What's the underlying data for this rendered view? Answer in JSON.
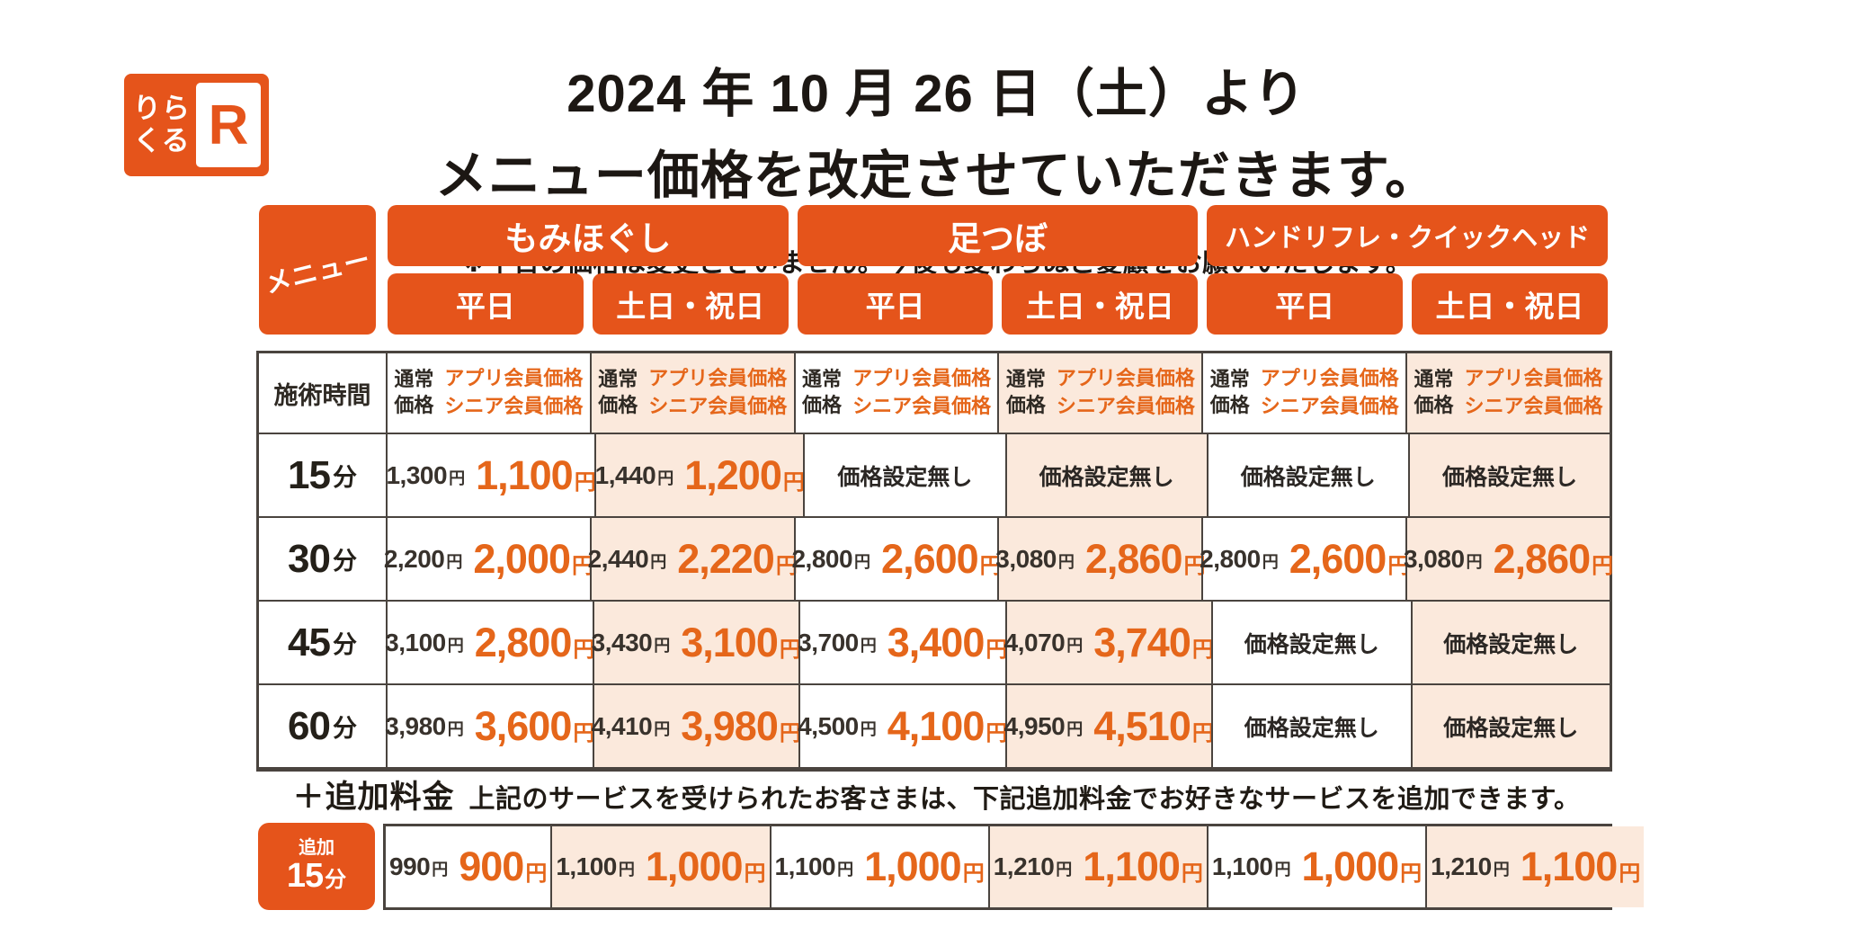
{
  "colors": {
    "brand_orange": "#e5541b",
    "price_orange": "#e5661a",
    "weekend_peach": "#fbe9dc",
    "table_line": "#4a443f"
  },
  "logo": {
    "text_line1": "りら",
    "text_line2": "くる",
    "r_letter": "R"
  },
  "header": {
    "title_line1": "2024 年 10 月 26 日（土）より",
    "title_line2": "メニュー価格を改定させていただきます。",
    "note": "※平日の価格は変更ございません。今後も変わらぬご愛顧をお願いいたします。"
  },
  "menu": {
    "corner_label": "メニュー",
    "services": [
      "もみほぐし",
      "足つぼ",
      "ハンドリフレ・クイックヘッド"
    ],
    "days": [
      "平日",
      "土日・祝日",
      "平日",
      "土日・祝日",
      "平日",
      "土日・祝日"
    ]
  },
  "table": {
    "time_header": "施術時間",
    "price_header": {
      "normal_line1": "通常",
      "normal_line2": "価格",
      "member_line1": "アプリ会員価格",
      "member_line2": "シニア会員価格"
    },
    "yen": "円",
    "minute_unit": "分",
    "no_price": "価格設定無し",
    "rows": [
      {
        "time": "15",
        "cells": [
          {
            "normal": "1,300",
            "member": "1,100"
          },
          {
            "normal": "1,440",
            "member": "1,200"
          },
          {
            "none": "価格設定無し"
          },
          {
            "none": "価格設定無し"
          },
          {
            "none": "価格設定無し"
          },
          {
            "none": "価格設定無し"
          }
        ]
      },
      {
        "time": "30",
        "cells": [
          {
            "normal": "2,200",
            "member": "2,000"
          },
          {
            "normal": "2,440",
            "member": "2,220"
          },
          {
            "normal": "2,800",
            "member": "2,600"
          },
          {
            "normal": "3,080",
            "member": "2,860"
          },
          {
            "normal": "2,800",
            "member": "2,600"
          },
          {
            "normal": "3,080",
            "member": "2,860"
          }
        ]
      },
      {
        "time": "45",
        "cells": [
          {
            "normal": "3,100",
            "member": "2,800"
          },
          {
            "normal": "3,430",
            "member": "3,100"
          },
          {
            "normal": "3,700",
            "member": "3,400"
          },
          {
            "normal": "4,070",
            "member": "3,740"
          },
          {
            "none": "価格設定無し"
          },
          {
            "none": "価格設定無し"
          }
        ]
      },
      {
        "time": "60",
        "cells": [
          {
            "normal": "3,980",
            "member": "3,600"
          },
          {
            "normal": "4,410",
            "member": "3,980"
          },
          {
            "normal": "4,500",
            "member": "4,100"
          },
          {
            "normal": "4,950",
            "member": "4,510"
          },
          {
            "none": "価格設定無し"
          },
          {
            "none": "価格設定無し"
          }
        ]
      }
    ]
  },
  "addon": {
    "heading": "＋追加料金",
    "description": "上記のサービスを受けられたお客さまは、下記追加料金でお好きなサービスを追加できます。",
    "badge_top": "追加",
    "badge_time": "15",
    "badge_unit": "分",
    "cells": [
      {
        "normal": "990",
        "member": "900"
      },
      {
        "normal": "1,100",
        "member": "1,000"
      },
      {
        "normal": "1,100",
        "member": "1,000"
      },
      {
        "normal": "1,210",
        "member": "1,100"
      },
      {
        "normal": "1,100",
        "member": "1,000"
      },
      {
        "normal": "1,210",
        "member": "1,100"
      }
    ]
  }
}
